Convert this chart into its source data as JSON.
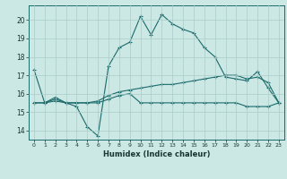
{
  "xlabel": "Humidex (Indice chaleur)",
  "ylabel": "",
  "background_color": "#cce8e4",
  "grid_color": "#aaccca",
  "line_color": "#1a6b6b",
  "xlim": [
    -0.5,
    23.5
  ],
  "ylim": [
    13.5,
    20.8
  ],
  "yticks": [
    14,
    15,
    16,
    17,
    18,
    19,
    20
  ],
  "xticks": [
    0,
    1,
    2,
    3,
    4,
    5,
    6,
    7,
    8,
    9,
    10,
    11,
    12,
    13,
    14,
    15,
    16,
    17,
    18,
    19,
    20,
    21,
    22,
    23
  ],
  "line1_x": [
    0,
    1,
    2,
    3,
    4,
    5,
    6,
    7,
    8,
    9,
    10,
    11,
    12,
    13,
    14,
    15,
    16,
    17,
    18,
    19,
    20,
    21,
    22,
    23
  ],
  "line1_y": [
    17.3,
    15.5,
    15.8,
    15.5,
    15.3,
    14.2,
    13.7,
    17.5,
    18.5,
    18.8,
    20.2,
    19.2,
    20.3,
    19.8,
    19.5,
    19.3,
    18.5,
    18.0,
    16.9,
    16.8,
    16.7,
    17.2,
    16.3,
    15.5
  ],
  "line2_x": [
    0,
    1,
    2,
    3,
    4,
    5,
    6,
    7,
    8,
    9,
    10,
    11,
    12,
    13,
    14,
    15,
    16,
    17,
    18,
    19,
    20,
    21,
    22,
    23
  ],
  "line2_y": [
    15.5,
    15.5,
    15.7,
    15.5,
    15.5,
    15.5,
    15.6,
    15.9,
    16.1,
    16.2,
    16.3,
    16.4,
    16.5,
    16.5,
    16.6,
    16.7,
    16.8,
    16.9,
    17.0,
    17.0,
    16.8,
    16.9,
    16.6,
    15.5
  ],
  "line3_x": [
    0,
    1,
    2,
    3,
    4,
    5,
    6,
    7,
    8,
    9,
    10,
    11,
    12,
    13,
    14,
    15,
    16,
    17,
    18,
    19,
    20,
    21,
    22,
    23
  ],
  "line3_y": [
    15.5,
    15.5,
    15.6,
    15.5,
    15.5,
    15.5,
    15.5,
    15.7,
    15.9,
    16.0,
    15.5,
    15.5,
    15.5,
    15.5,
    15.5,
    15.5,
    15.5,
    15.5,
    15.5,
    15.5,
    15.3,
    15.3,
    15.3,
    15.5
  ]
}
